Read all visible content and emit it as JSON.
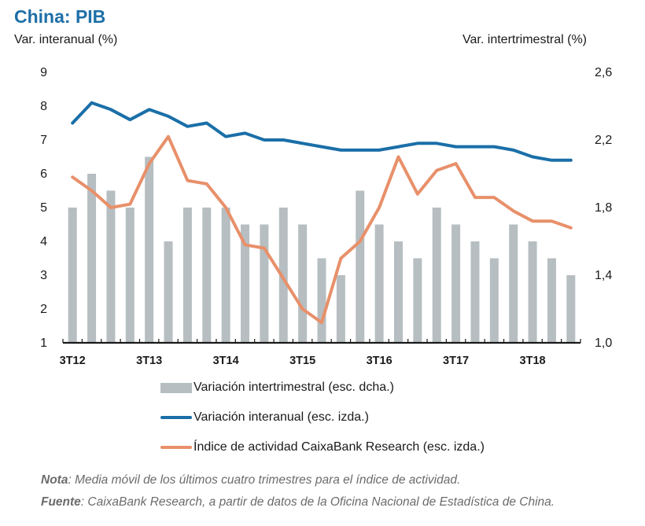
{
  "title": "China: PIB",
  "left_axis_label": "Var. interanual (%)",
  "right_axis_label": "Var. intertrimestral (%)",
  "legend": {
    "bars": "Variación intertrimestral (esc. dcha.)",
    "blue_line": "Variación interanual (esc. izda.)",
    "orange_line": "Índice de actividad CaixaBank Research (esc. izda.)"
  },
  "note": {
    "label": "Nota",
    "text": ": Media móvil de los últimos cuatro trimestres para el índice de actividad."
  },
  "source": {
    "label": "Fuente",
    "text": ": CaixaBank Research, a partir de datos de la Oficina Nacional de Estadística de China."
  },
  "colors": {
    "bars": "#b6bec1",
    "blue_line": "#1a6fa8",
    "orange_line": "#e8906a",
    "axis": "#1a1a1a",
    "title": "#1d6fa8"
  },
  "chart_data": {
    "type": "bar",
    "x_tick_labels": [
      "3T12",
      "3T13",
      "3T14",
      "3T15",
      "3T16",
      "3T17",
      "3T18"
    ],
    "x_tick_indices": [
      0,
      4,
      8,
      12,
      16,
      20,
      24
    ],
    "n_periods": 27,
    "left_axis": {
      "ylim": [
        1,
        9
      ],
      "ticks": [
        "1",
        "2",
        "3",
        "4",
        "5",
        "6",
        "7",
        "8",
        "9"
      ]
    },
    "right_axis": {
      "ylim": [
        1.0,
        2.6
      ],
      "ticks": [
        "1,0",
        "1,4",
        "1,8",
        "2,2",
        "2,6"
      ]
    },
    "series": [
      {
        "name": "Variación intertrimestral (esc. dcha.)",
        "kind": "bar",
        "axis": "right",
        "values": [
          1.8,
          2.0,
          1.9,
          1.8,
          2.1,
          1.6,
          1.8,
          1.8,
          1.8,
          1.7,
          1.7,
          1.8,
          1.7,
          1.5,
          1.4,
          1.9,
          1.7,
          1.6,
          1.5,
          1.8,
          1.7,
          1.6,
          1.5,
          1.7,
          1.6,
          1.5,
          1.4
        ]
      },
      {
        "name": "Variación interanual (esc. izda.)",
        "kind": "line",
        "axis": "left",
        "values": [
          7.5,
          8.1,
          7.9,
          7.6,
          7.9,
          7.7,
          7.4,
          7.5,
          7.1,
          7.2,
          7.0,
          7.0,
          6.9,
          6.8,
          6.7,
          6.7,
          6.7,
          6.8,
          6.9,
          6.9,
          6.8,
          6.8,
          6.8,
          6.7,
          6.5,
          6.4,
          6.4
        ]
      },
      {
        "name": "Índice de actividad CaixaBank Research (esc. izda.)",
        "kind": "line",
        "axis": "left",
        "values": [
          5.9,
          5.5,
          5.0,
          5.1,
          6.3,
          7.1,
          5.8,
          5.7,
          5.0,
          3.9,
          3.8,
          2.9,
          2.0,
          1.6,
          3.5,
          4.0,
          5.0,
          6.5,
          5.4,
          6.1,
          6.3,
          5.3,
          5.3,
          4.9,
          4.6,
          4.6,
          4.4
        ]
      }
    ]
  }
}
